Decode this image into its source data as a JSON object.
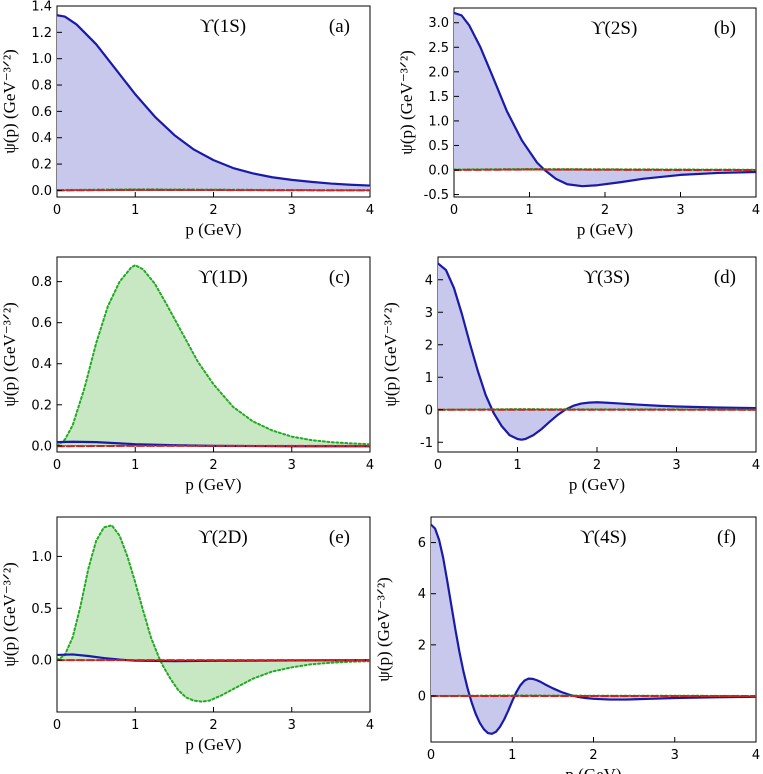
{
  "chart_data": [
    {
      "type": "area",
      "title": "ϒ(1S)",
      "panel_tag": "(a)",
      "xlabel": "p (GeV)",
      "ylabel": "ψ(p) (GeV⁻³ᐟ²)",
      "xlim": [
        0,
        4
      ],
      "ylim": [
        -0.05,
        1.4
      ],
      "xticks": [
        "0",
        "1",
        "2",
        "3",
        "4"
      ],
      "yticks": [
        "0.0",
        "0.2",
        "0.4",
        "0.6",
        "0.8",
        "1.0",
        "1.2",
        "1.4"
      ],
      "series": [
        {
          "style": "solid",
          "color": "#1a1aaa",
          "fill": "#c8c8ec",
          "x": [
            0,
            0.1,
            0.25,
            0.5,
            0.75,
            1.0,
            1.25,
            1.5,
            1.75,
            2.0,
            2.25,
            2.5,
            2.75,
            3.0,
            3.25,
            3.5,
            3.75,
            4.0
          ],
          "y": [
            1.33,
            1.32,
            1.26,
            1.11,
            0.92,
            0.73,
            0.56,
            0.42,
            0.31,
            0.23,
            0.17,
            0.13,
            0.1,
            0.08,
            0.065,
            0.052,
            0.043,
            0.037
          ]
        },
        {
          "style": "dotted",
          "color": "#22aa22",
          "fill": "",
          "x": [
            0,
            1,
            2,
            3,
            4
          ],
          "y": [
            0.003,
            0.008,
            0.006,
            0.003,
            0.002
          ]
        },
        {
          "style": "dashed",
          "color": "#cc2222",
          "fill": "",
          "x": [
            0,
            1,
            2,
            3,
            4
          ],
          "y": [
            0.0,
            0.004,
            0.003,
            0.001,
            0.0
          ]
        }
      ]
    },
    {
      "type": "area",
      "title": "ϒ(2S)",
      "panel_tag": "(b)",
      "xlabel": "p (GeV)",
      "ylabel": "ψ(p) (GeV⁻³ᐟ²)",
      "xlim": [
        0,
        4
      ],
      "ylim": [
        -0.55,
        3.3
      ],
      "xticks": [
        "0",
        "1",
        "2",
        "3",
        "4"
      ],
      "yticks": [
        "-0.5",
        "0.0",
        "0.5",
        "1.0",
        "1.5",
        "2.0",
        "2.5",
        "3.0"
      ],
      "series": [
        {
          "style": "solid",
          "color": "#1a1aaa",
          "fill": "#c8c8ec",
          "x": [
            0,
            0.1,
            0.2,
            0.35,
            0.5,
            0.7,
            0.9,
            1.1,
            1.2,
            1.35,
            1.5,
            1.7,
            1.9,
            2.2,
            2.5,
            3.0,
            3.5,
            4.0
          ],
          "y": [
            3.2,
            3.15,
            2.95,
            2.5,
            1.95,
            1.2,
            0.6,
            0.15,
            0.0,
            -0.18,
            -0.29,
            -0.33,
            -0.31,
            -0.25,
            -0.18,
            -0.1,
            -0.06,
            -0.04
          ]
        },
        {
          "style": "dotted",
          "color": "#22aa22",
          "fill": "",
          "x": [
            0,
            1,
            2,
            3,
            4
          ],
          "y": [
            0.01,
            0.02,
            0.015,
            0.01,
            0.005
          ]
        },
        {
          "style": "dashed",
          "color": "#cc2222",
          "fill": "",
          "x": [
            0,
            1,
            2,
            3,
            4
          ],
          "y": [
            0.0,
            0.01,
            0.005,
            0.0,
            0.0
          ]
        }
      ]
    },
    {
      "type": "area",
      "title": "ϒ(1D)",
      "panel_tag": "(c)",
      "xlabel": "p (GeV)",
      "ylabel": "ψ(p) (GeV⁻³ᐟ²)",
      "xlim": [
        0,
        4
      ],
      "ylim": [
        -0.03,
        0.92
      ],
      "xticks": [
        "0",
        "1",
        "2",
        "3",
        "4"
      ],
      "yticks": [
        "0.0",
        "0.2",
        "0.4",
        "0.6",
        "0.8"
      ],
      "series": [
        {
          "style": "dotted",
          "color": "#22aa22",
          "fill": "#c8e8c4",
          "x": [
            0,
            0.1,
            0.2,
            0.35,
            0.5,
            0.65,
            0.8,
            0.95,
            1.0,
            1.1,
            1.25,
            1.4,
            1.6,
            1.8,
            2.0,
            2.25,
            2.5,
            2.75,
            3.0,
            3.25,
            3.5,
            3.75,
            4.0
          ],
          "y": [
            0.0,
            0.03,
            0.1,
            0.28,
            0.5,
            0.68,
            0.8,
            0.87,
            0.88,
            0.86,
            0.79,
            0.69,
            0.55,
            0.41,
            0.3,
            0.19,
            0.12,
            0.075,
            0.045,
            0.028,
            0.018,
            0.012,
            0.008
          ]
        },
        {
          "style": "solid",
          "color": "#1a1aaa",
          "fill": "",
          "x": [
            0,
            0.2,
            0.5,
            0.8,
            1.0,
            1.5,
            2.0,
            3.0,
            4.0
          ],
          "y": [
            0.018,
            0.02,
            0.018,
            0.012,
            0.008,
            0.003,
            0.0,
            -0.002,
            -0.002
          ]
        },
        {
          "style": "dashed",
          "color": "#cc2222",
          "fill": "",
          "x": [
            0,
            1,
            2,
            3,
            4
          ],
          "y": [
            -0.002,
            0.0,
            0.0,
            0.0,
            0.0
          ]
        }
      ]
    },
    {
      "type": "area",
      "title": "ϒ(3S)",
      "panel_tag": "(d)",
      "xlabel": "p (GeV)",
      "ylabel": "ψ(p) (GeV⁻³ᐟ²)",
      "xlim": [
        0,
        4
      ],
      "ylim": [
        -1.3,
        4.7
      ],
      "xticks": [
        "0",
        "1",
        "2",
        "3",
        "4"
      ],
      "yticks": [
        "-1",
        "0",
        "1",
        "2",
        "3",
        "4"
      ],
      "series": [
        {
          "style": "solid",
          "color": "#1a1aaa",
          "fill": "#c8c8ec",
          "x": [
            0,
            0.1,
            0.2,
            0.3,
            0.4,
            0.5,
            0.6,
            0.7,
            0.8,
            0.9,
            1.0,
            1.05,
            1.1,
            1.2,
            1.3,
            1.4,
            1.5,
            1.6,
            1.7,
            1.8,
            1.9,
            2.0,
            2.1,
            2.3,
            2.5,
            2.8,
            3.0,
            3.5,
            4.0
          ],
          "y": [
            4.5,
            4.3,
            3.75,
            2.95,
            2.05,
            1.2,
            0.45,
            -0.1,
            -0.5,
            -0.78,
            -0.9,
            -0.92,
            -0.9,
            -0.78,
            -0.6,
            -0.38,
            -0.17,
            0.0,
            0.12,
            0.19,
            0.22,
            0.23,
            0.22,
            0.19,
            0.16,
            0.12,
            0.1,
            0.07,
            0.05
          ]
        },
        {
          "style": "dotted",
          "color": "#22aa22",
          "fill": "",
          "x": [
            0,
            1,
            2,
            3,
            4
          ],
          "y": [
            0.0,
            0.02,
            0.01,
            0.01,
            0.0
          ]
        },
        {
          "style": "dashed",
          "color": "#cc2222",
          "fill": "",
          "x": [
            0,
            1,
            2,
            3,
            4
          ],
          "y": [
            0.0,
            0.0,
            0.0,
            0.0,
            0.0
          ]
        }
      ]
    },
    {
      "type": "area",
      "title": "ϒ(2D)",
      "panel_tag": "(e)",
      "xlabel": "p (GeV)",
      "ylabel": "ψ(p) (GeV⁻³ᐟ²)",
      "xlim": [
        0,
        4
      ],
      "ylim": [
        -0.5,
        1.38
      ],
      "xticks": [
        "0",
        "1",
        "2",
        "3",
        "4"
      ],
      "yticks": [
        "0.0",
        "0.5",
        "1.0"
      ],
      "series": [
        {
          "style": "dotted",
          "color": "#22aa22",
          "fill": "#c8e8c4",
          "x": [
            0,
            0.1,
            0.2,
            0.3,
            0.4,
            0.5,
            0.6,
            0.7,
            0.8,
            0.9,
            1.0,
            1.1,
            1.2,
            1.3,
            1.35,
            1.45,
            1.55,
            1.65,
            1.75,
            1.85,
            1.95,
            2.1,
            2.3,
            2.5,
            2.75,
            3.0,
            3.25,
            3.5,
            3.75,
            4.0
          ],
          "y": [
            0.0,
            0.05,
            0.22,
            0.52,
            0.88,
            1.15,
            1.28,
            1.3,
            1.2,
            1.0,
            0.75,
            0.48,
            0.22,
            0.03,
            -0.05,
            -0.18,
            -0.29,
            -0.36,
            -0.39,
            -0.4,
            -0.39,
            -0.34,
            -0.26,
            -0.18,
            -0.11,
            -0.07,
            -0.04,
            -0.025,
            -0.015,
            -0.01
          ]
        },
        {
          "style": "solid",
          "color": "#1a1aaa",
          "fill": "",
          "x": [
            0,
            0.2,
            0.4,
            0.6,
            0.8,
            1.0,
            1.5,
            2.0,
            3.0,
            4.0
          ],
          "y": [
            0.05,
            0.055,
            0.04,
            0.02,
            0.005,
            -0.005,
            -0.01,
            -0.006,
            -0.003,
            0.0
          ]
        },
        {
          "style": "dashed",
          "color": "#cc2222",
          "fill": "",
          "x": [
            0,
            1,
            2,
            3,
            4
          ],
          "y": [
            0.0,
            0.0,
            0.0,
            0.0,
            0.0
          ]
        }
      ]
    },
    {
      "type": "area",
      "title": "ϒ(4S)",
      "panel_tag": "(f)",
      "xlabel": "p (GeV)",
      "ylabel": "ψ(p) (GeV⁻³ᐟ²)",
      "xlim": [
        0,
        4
      ],
      "ylim": [
        -1.8,
        7.0
      ],
      "xticks": [
        "0",
        "1",
        "2",
        "3",
        "4"
      ],
      "yticks": [
        "0",
        "2",
        "4",
        "6"
      ],
      "series": [
        {
          "style": "solid",
          "color": "#1a1aaa",
          "fill": "#c8c8ec",
          "x": [
            0,
            0.05,
            0.1,
            0.15,
            0.2,
            0.25,
            0.3,
            0.35,
            0.4,
            0.45,
            0.5,
            0.55,
            0.6,
            0.65,
            0.7,
            0.75,
            0.8,
            0.85,
            0.9,
            0.95,
            1.0,
            1.05,
            1.1,
            1.15,
            1.2,
            1.25,
            1.3,
            1.35,
            1.4,
            1.5,
            1.6,
            1.7,
            1.8,
            1.9,
            2.0,
            2.2,
            2.4,
            2.7,
            3.0,
            3.5,
            4.0
          ],
          "y": [
            6.7,
            6.55,
            6.1,
            5.4,
            4.5,
            3.55,
            2.6,
            1.72,
            0.95,
            0.3,
            -0.25,
            -0.7,
            -1.05,
            -1.3,
            -1.45,
            -1.48,
            -1.4,
            -1.2,
            -0.92,
            -0.58,
            -0.2,
            0.15,
            0.42,
            0.6,
            0.68,
            0.67,
            0.62,
            0.55,
            0.46,
            0.3,
            0.16,
            0.05,
            -0.03,
            -0.08,
            -0.11,
            -0.14,
            -0.14,
            -0.11,
            -0.08,
            -0.05,
            -0.03
          ]
        },
        {
          "style": "dotted",
          "color": "#22aa22",
          "fill": "",
          "x": [
            0,
            1,
            2,
            3,
            4
          ],
          "y": [
            0.0,
            0.02,
            0.01,
            0.01,
            0.0
          ]
        },
        {
          "style": "dashed",
          "color": "#cc2222",
          "fill": "",
          "x": [
            0,
            1,
            2,
            3,
            4
          ],
          "y": [
            0.0,
            0.0,
            0.0,
            0.0,
            0.0
          ]
        }
      ]
    }
  ]
}
